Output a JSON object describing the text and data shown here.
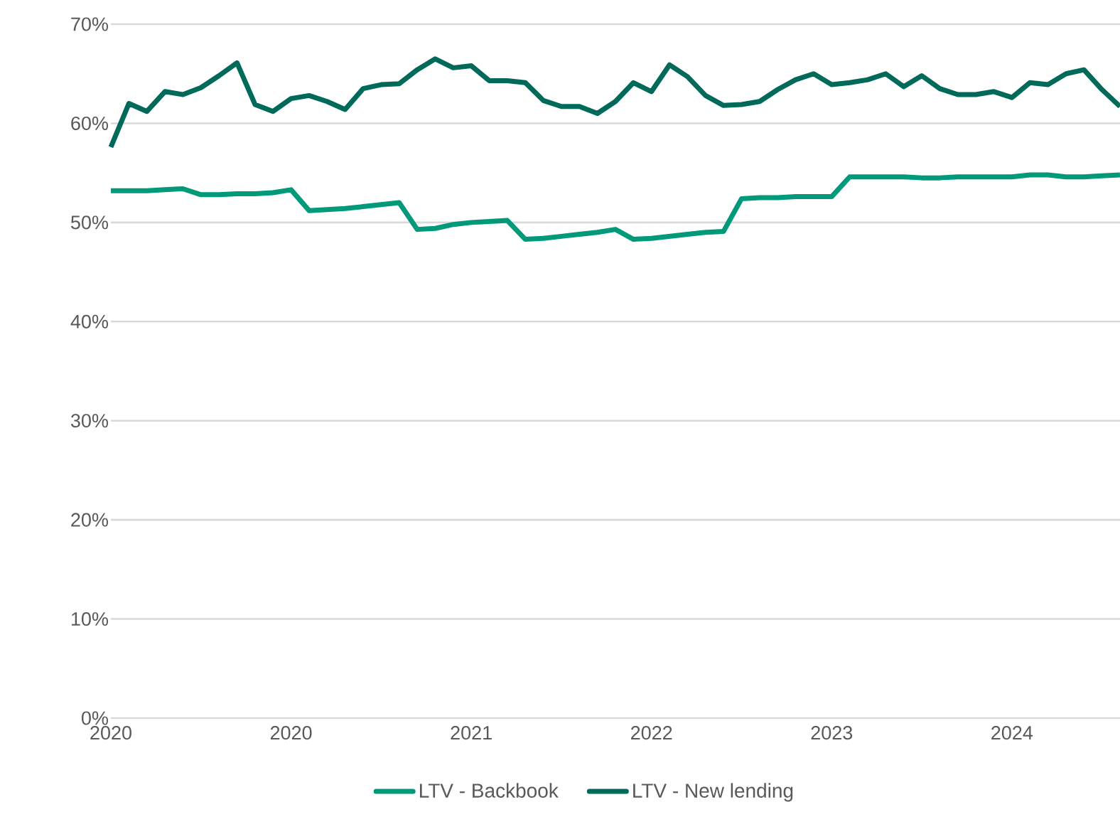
{
  "chart_data": {
    "type": "line",
    "categories": [
      "2020",
      null,
      null,
      null,
      null,
      null,
      null,
      null,
      null,
      null,
      "2020",
      null,
      null,
      null,
      null,
      null,
      null,
      null,
      null,
      null,
      "2021",
      null,
      null,
      null,
      null,
      null,
      null,
      null,
      null,
      null,
      "2022",
      null,
      null,
      null,
      null,
      null,
      null,
      null,
      null,
      null,
      "2023",
      null,
      null,
      null,
      null,
      null,
      null,
      null,
      null,
      null,
      "2024",
      null,
      null,
      null,
      null,
      null,
      null
    ],
    "series": [
      {
        "name": "LTV - Backbook",
        "color": "#00997a",
        "values": [
          53.2,
          53.2,
          53.2,
          53.3,
          53.4,
          52.8,
          52.8,
          52.9,
          52.9,
          53.0,
          53.3,
          51.2,
          51.3,
          51.4,
          51.6,
          51.8,
          52.0,
          49.3,
          49.4,
          49.8,
          50.0,
          50.1,
          50.2,
          48.3,
          48.4,
          48.6,
          48.8,
          49.0,
          49.3,
          48.3,
          48.4,
          48.6,
          48.8,
          49.0,
          49.1,
          52.4,
          52.5,
          52.5,
          52.6,
          52.6,
          52.6,
          54.6,
          54.6,
          54.6,
          54.6,
          54.5,
          54.5,
          54.6,
          54.6,
          54.6,
          54.6,
          54.8,
          54.8,
          54.6,
          54.6,
          54.7,
          54.8
        ]
      },
      {
        "name": "LTV - New lending",
        "color": "#006a5a",
        "values": [
          57.6,
          62.0,
          61.2,
          63.2,
          62.9,
          63.6,
          64.8,
          66.1,
          61.9,
          61.2,
          62.5,
          62.8,
          62.2,
          61.4,
          63.5,
          63.9,
          64.0,
          65.4,
          66.5,
          65.6,
          65.8,
          64.3,
          64.3,
          64.1,
          62.3,
          61.7,
          61.7,
          61.0,
          62.2,
          64.1,
          63.2,
          65.9,
          64.7,
          62.8,
          61.8,
          61.9,
          62.2,
          63.4,
          64.4,
          65.0,
          63.9,
          64.1,
          64.4,
          65.0,
          63.7,
          64.8,
          63.5,
          62.9,
          62.9,
          63.2,
          62.6,
          64.1,
          63.9,
          65.0,
          65.4,
          63.4,
          61.7
        ]
      }
    ],
    "ylim": [
      0,
      70
    ],
    "yticks": [
      {
        "value": 0,
        "label": "0%"
      },
      {
        "value": 10,
        "label": "10%"
      },
      {
        "value": 20,
        "label": "20%"
      },
      {
        "value": 30,
        "label": "30%"
      },
      {
        "value": 40,
        "label": "40%"
      },
      {
        "value": 50,
        "label": "50%"
      },
      {
        "value": 60,
        "label": "60%"
      },
      {
        "value": 70,
        "label": "70%"
      }
    ],
    "grid": "y",
    "legend": "bottom",
    "marker": "none",
    "line_style": "solid"
  }
}
